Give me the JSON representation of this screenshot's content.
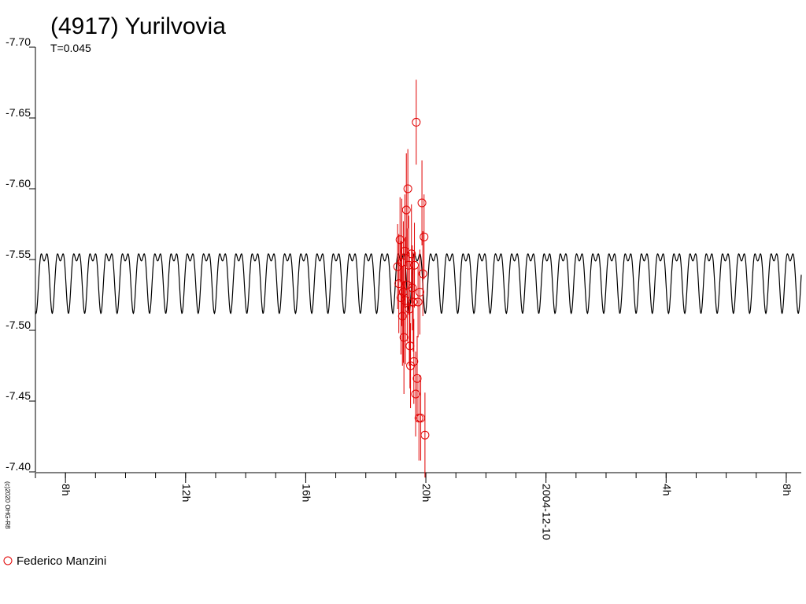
{
  "chart_data": {
    "type": "scatter",
    "title": "(4917) Yurilvovia",
    "subtitle": "T=0.045",
    "credit": "(c)2020 OHG-R8",
    "y_axis": {
      "range": [
        -7.7,
        -7.4
      ],
      "inverted": true,
      "ticks": [
        "-7.70",
        "-7.65",
        "-7.60",
        "-7.55",
        "-7.50",
        "-7.45",
        "-7.40"
      ]
    },
    "x_axis": {
      "range": [
        7.0,
        32.5
      ],
      "unit": "hours",
      "major_ticks": [
        {
          "h": 8,
          "label": "8h"
        },
        {
          "h": 12,
          "label": "12h"
        },
        {
          "h": 16,
          "label": "16h"
        },
        {
          "h": 20,
          "label": "20h"
        },
        {
          "h": 24,
          "label": "2004-12-10"
        },
        {
          "h": 28,
          "label": "4h"
        },
        {
          "h": 32,
          "label": "8h"
        }
      ],
      "minor_step": 1
    },
    "model_curve": {
      "color": "#000000",
      "mean": -7.54,
      "period_h": 0.54,
      "amp1": 0.0185,
      "amp2": 0.0095
    },
    "series": [
      {
        "name": "Federico Manzini",
        "color": "#e00000",
        "marker": "open-circle",
        "points": [
          {
            "x": 19.06,
            "y": -7.545,
            "err": 0.03
          },
          {
            "x": 19.1,
            "y": -7.533,
            "err": 0.035
          },
          {
            "x": 19.14,
            "y": -7.564,
            "err": 0.03
          },
          {
            "x": 19.17,
            "y": -7.523,
            "err": 0.04
          },
          {
            "x": 19.2,
            "y": -7.548,
            "err": 0.045
          },
          {
            "x": 19.22,
            "y": -7.51,
            "err": 0.035
          },
          {
            "x": 19.25,
            "y": -7.527,
            "err": 0.05
          },
          {
            "x": 19.27,
            "y": -7.495,
            "err": 0.04
          },
          {
            "x": 19.3,
            "y": -7.556,
            "err": 0.04
          },
          {
            "x": 19.32,
            "y": -7.521,
            "err": 0.045
          },
          {
            "x": 19.35,
            "y": -7.585,
            "err": 0.04
          },
          {
            "x": 19.38,
            "y": -7.532,
            "err": 0.04
          },
          {
            "x": 19.4,
            "y": -7.6,
            "err": 0.028
          },
          {
            "x": 19.43,
            "y": -7.546,
            "err": 0.035
          },
          {
            "x": 19.45,
            "y": -7.515,
            "err": 0.04
          },
          {
            "x": 19.47,
            "y": -7.489,
            "err": 0.03
          },
          {
            "x": 19.49,
            "y": -7.475,
            "err": 0.03
          },
          {
            "x": 19.52,
            "y": -7.554,
            "err": 0.035
          },
          {
            "x": 19.55,
            "y": -7.53,
            "err": 0.03
          },
          {
            "x": 19.58,
            "y": -7.52,
            "err": 0.035
          },
          {
            "x": 19.6,
            "y": -7.478,
            "err": 0.03
          },
          {
            "x": 19.62,
            "y": -7.546,
            "err": 0.03
          },
          {
            "x": 19.66,
            "y": -7.455,
            "err": 0.03
          },
          {
            "x": 19.68,
            "y": -7.647,
            "err": 0.03
          },
          {
            "x": 19.71,
            "y": -7.466,
            "err": 0.03
          },
          {
            "x": 19.74,
            "y": -7.52,
            "err": 0.025
          },
          {
            "x": 19.77,
            "y": -7.438,
            "err": 0.03
          },
          {
            "x": 19.8,
            "y": -7.527,
            "err": 0.03
          },
          {
            "x": 19.83,
            "y": -7.438,
            "err": 0.03
          },
          {
            "x": 19.87,
            "y": -7.59,
            "err": 0.03
          },
          {
            "x": 19.9,
            "y": -7.54,
            "err": 0.03
          },
          {
            "x": 19.94,
            "y": -7.566,
            "err": 0.03
          },
          {
            "x": 19.97,
            "y": -7.426,
            "err": 0.03
          }
        ]
      }
    ],
    "legend": {
      "position": "bottom-left",
      "label": "Federico Manzini"
    }
  }
}
